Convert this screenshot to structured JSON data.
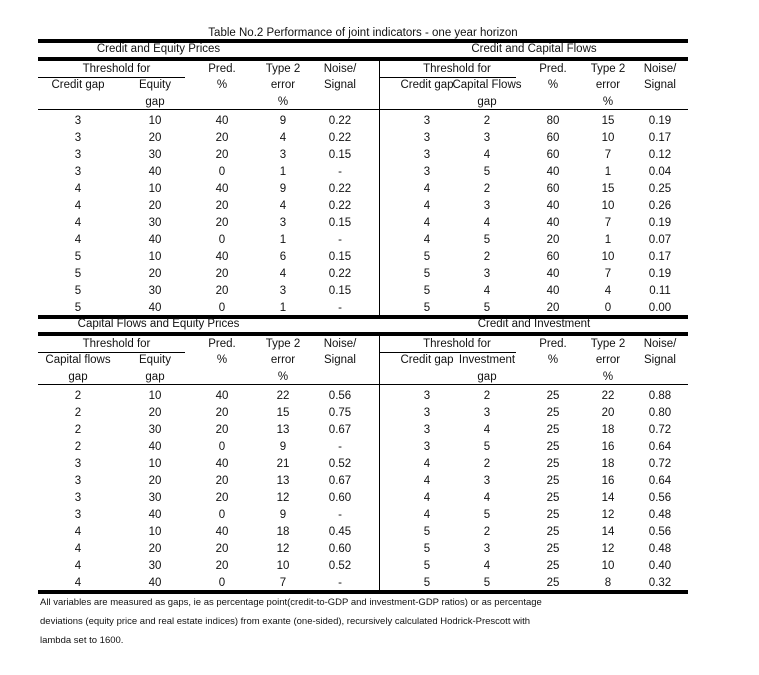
{
  "title": "Table No.2  Performance of joint indicators - one year horizon",
  "panels": [
    {
      "name": "Credit and Equity Prices",
      "threshold_label": "Threshold for",
      "col1": [
        "Credit gap",
        ""
      ],
      "col2": [
        "Equity",
        "gap"
      ],
      "pred": [
        "Pred.",
        "%"
      ],
      "type2": [
        "Type 2",
        "error",
        "%"
      ],
      "noise": [
        "Noise/",
        "Signal"
      ],
      "rows": [
        [
          "3",
          "10",
          "40",
          "9",
          "0.22"
        ],
        [
          "3",
          "20",
          "20",
          "4",
          "0.22"
        ],
        [
          "3",
          "30",
          "20",
          "3",
          "0.15"
        ],
        [
          "3",
          "40",
          "0",
          "1",
          "-"
        ],
        [
          "4",
          "10",
          "40",
          "9",
          "0.22"
        ],
        [
          "4",
          "20",
          "20",
          "4",
          "0.22"
        ],
        [
          "4",
          "30",
          "20",
          "3",
          "0.15"
        ],
        [
          "4",
          "40",
          "0",
          "1",
          "-"
        ],
        [
          "5",
          "10",
          "40",
          "6",
          "0.15"
        ],
        [
          "5",
          "20",
          "20",
          "4",
          "0.22"
        ],
        [
          "5",
          "30",
          "20",
          "3",
          "0.15"
        ],
        [
          "5",
          "40",
          "0",
          "1",
          "-"
        ]
      ]
    },
    {
      "name": "Credit and Capital Flows",
      "threshold_label": "Threshold for",
      "col1": [
        "Credit gap",
        ""
      ],
      "col2": [
        "Capital Flows",
        "gap"
      ],
      "pred": [
        "Pred.",
        "%"
      ],
      "type2": [
        "Type 2",
        "error",
        "%"
      ],
      "noise": [
        "Noise/",
        "Signal"
      ],
      "rows": [
        [
          "3",
          "2",
          "80",
          "15",
          "0.19"
        ],
        [
          "3",
          "3",
          "60",
          "10",
          "0.17"
        ],
        [
          "3",
          "4",
          "60",
          "7",
          "0.12"
        ],
        [
          "3",
          "5",
          "40",
          "1",
          "0.04"
        ],
        [
          "4",
          "2",
          "60",
          "15",
          "0.25"
        ],
        [
          "4",
          "3",
          "40",
          "10",
          "0.26"
        ],
        [
          "4",
          "4",
          "40",
          "7",
          "0.19"
        ],
        [
          "4",
          "5",
          "20",
          "1",
          "0.07"
        ],
        [
          "5",
          "2",
          "60",
          "10",
          "0.17"
        ],
        [
          "5",
          "3",
          "40",
          "7",
          "0.19"
        ],
        [
          "5",
          "4",
          "40",
          "4",
          "0.11"
        ],
        [
          "5",
          "5",
          "20",
          "0",
          "0.00"
        ]
      ]
    },
    {
      "name": "Capital Flows and Equity Prices",
      "threshold_label": "Threshold for",
      "col1": [
        "Capital flows",
        "gap"
      ],
      "col2": [
        "Equity",
        "gap"
      ],
      "pred": [
        "Pred.",
        "%"
      ],
      "type2": [
        "Type 2",
        "error",
        "%"
      ],
      "noise": [
        "Noise/",
        "Signal"
      ],
      "rows": [
        [
          "2",
          "10",
          "40",
          "22",
          "0.56"
        ],
        [
          "2",
          "20",
          "20",
          "15",
          "0.75"
        ],
        [
          "2",
          "30",
          "20",
          "13",
          "0.67"
        ],
        [
          "2",
          "40",
          "0",
          "9",
          "-"
        ],
        [
          "3",
          "10",
          "40",
          "21",
          "0.52"
        ],
        [
          "3",
          "20",
          "20",
          "13",
          "0.67"
        ],
        [
          "3",
          "30",
          "20",
          "12",
          "0.60"
        ],
        [
          "3",
          "40",
          "0",
          "9",
          "-"
        ],
        [
          "4",
          "10",
          "40",
          "18",
          "0.45"
        ],
        [
          "4",
          "20",
          "20",
          "12",
          "0.60"
        ],
        [
          "4",
          "30",
          "20",
          "10",
          "0.52"
        ],
        [
          "4",
          "40",
          "0",
          "7",
          "-"
        ]
      ]
    },
    {
      "name": "Credit and Investment",
      "threshold_label": "Threshold for",
      "col1": [
        "Credit gap",
        ""
      ],
      "col2": [
        "Investment",
        "gap"
      ],
      "pred": [
        "Pred.",
        "%"
      ],
      "type2": [
        "Type 2",
        "error",
        "%"
      ],
      "noise": [
        "Noise/",
        "Signal"
      ],
      "rows": [
        [
          "3",
          "2",
          "25",
          "22",
          "0.88"
        ],
        [
          "3",
          "3",
          "25",
          "20",
          "0.80"
        ],
        [
          "3",
          "4",
          "25",
          "18",
          "0.72"
        ],
        [
          "3",
          "5",
          "25",
          "16",
          "0.64"
        ],
        [
          "4",
          "2",
          "25",
          "18",
          "0.72"
        ],
        [
          "4",
          "3",
          "25",
          "16",
          "0.64"
        ],
        [
          "4",
          "4",
          "25",
          "14",
          "0.56"
        ],
        [
          "4",
          "5",
          "25",
          "12",
          "0.48"
        ],
        [
          "5",
          "2",
          "25",
          "14",
          "0.56"
        ],
        [
          "5",
          "3",
          "25",
          "12",
          "0.48"
        ],
        [
          "5",
          "4",
          "25",
          "10",
          "0.40"
        ],
        [
          "5",
          "5",
          "25",
          "8",
          "0.32"
        ]
      ]
    }
  ],
  "footnote": [
    "All variables are measured as gaps, ie as percentage point(credit-to-GDP and investment-GDP ratios) or as percentage",
    "deviations (equity price and real estate indices) from exante (one-sided), recursively calculated Hodrick-Prescott with",
    "lambda set to 1600."
  ]
}
